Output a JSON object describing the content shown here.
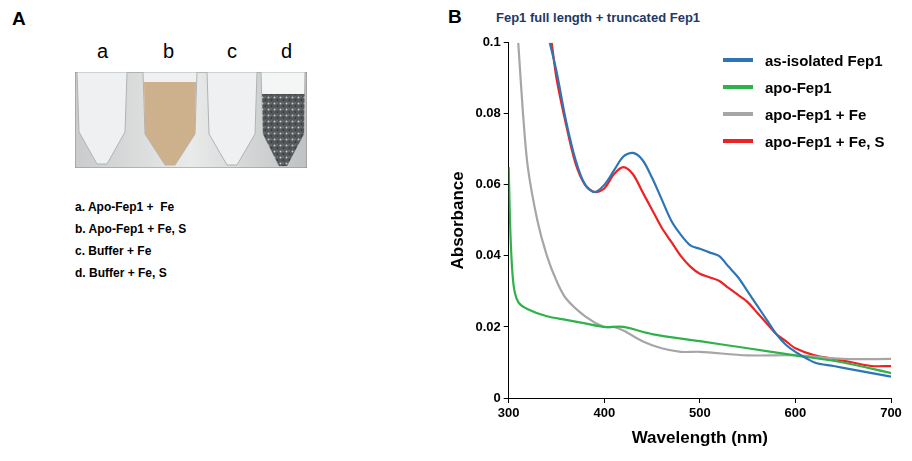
{
  "panel_a": {
    "letter": "A",
    "tube_labels": [
      "a",
      "b",
      "c",
      "d"
    ],
    "key_lines": [
      "a. Apo-Fep1 +  Fe",
      "b. Apo-Fep1 + Fe, S",
      "c. Buffer + Fe",
      "d. Buffer + Fe, S"
    ]
  },
  "chart_data": {
    "type": "line",
    "panel_label": "B",
    "title": "Fep1 full length + truncated Fep1",
    "x_label": "Wavelength (nm)",
    "y_label": "Absorbance",
    "xlim": [
      300,
      700
    ],
    "xticks": [
      300,
      400,
      500,
      600,
      700
    ],
    "ylim": [
      0,
      0.1
    ],
    "yticks": [
      0,
      0.02,
      0.04,
      0.06,
      0.08,
      0.1
    ],
    "grid": false,
    "legend": "top-right",
    "series": [
      {
        "name": "as-isolated Fep1",
        "color": "#2e75b6",
        "x": [
          343,
          350,
          360,
          370,
          380,
          390,
          400,
          410,
          420,
          430,
          440,
          450,
          460,
          470,
          480,
          490,
          500,
          510,
          520,
          530,
          540,
          550,
          560,
          570,
          580,
          590,
          600,
          620,
          640,
          660,
          680,
          700
        ],
        "values": [
          0.1,
          0.092,
          0.078,
          0.067,
          0.06,
          0.058,
          0.06,
          0.064,
          0.068,
          0.069,
          0.067,
          0.062,
          0.056,
          0.05,
          0.046,
          0.043,
          0.042,
          0.041,
          0.04,
          0.037,
          0.034,
          0.03,
          0.026,
          0.022,
          0.018,
          0.015,
          0.013,
          0.01,
          0.009,
          0.008,
          0.007,
          0.006
        ]
      },
      {
        "name": "apo-Fep1",
        "color": "#2db34a",
        "x": [
          300,
          302,
          305,
          310,
          320,
          340,
          360,
          380,
          400,
          420,
          450,
          500,
          550,
          600,
          650,
          700
        ],
        "values": [
          0.065,
          0.045,
          0.032,
          0.027,
          0.025,
          0.023,
          0.022,
          0.021,
          0.02,
          0.02,
          0.018,
          0.016,
          0.014,
          0.012,
          0.01,
          0.007
        ]
      },
      {
        "name": "apo-Fep1 + Fe",
        "color": "#a6a6a6",
        "x": [
          310,
          315,
          320,
          330,
          340,
          350,
          360,
          380,
          400,
          410,
          420,
          440,
          460,
          480,
          500,
          550,
          600,
          650,
          700
        ],
        "values": [
          0.1,
          0.08,
          0.065,
          0.05,
          0.04,
          0.033,
          0.028,
          0.023,
          0.02,
          0.02,
          0.019,
          0.016,
          0.014,
          0.013,
          0.013,
          0.012,
          0.012,
          0.011,
          0.011
        ]
      },
      {
        "name": "apo-Fep1 + Fe, S",
        "color": "#ee2222",
        "x": [
          345,
          350,
          360,
          370,
          380,
          390,
          400,
          410,
          420,
          430,
          440,
          450,
          460,
          470,
          480,
          490,
          500,
          510,
          520,
          530,
          540,
          550,
          560,
          570,
          580,
          590,
          600,
          620,
          640,
          660,
          680,
          700
        ],
        "values": [
          0.1,
          0.09,
          0.077,
          0.066,
          0.06,
          0.058,
          0.059,
          0.063,
          0.065,
          0.063,
          0.058,
          0.053,
          0.048,
          0.044,
          0.04,
          0.037,
          0.035,
          0.034,
          0.033,
          0.031,
          0.029,
          0.027,
          0.024,
          0.021,
          0.018,
          0.016,
          0.014,
          0.012,
          0.011,
          0.01,
          0.009,
          0.009
        ]
      }
    ]
  }
}
